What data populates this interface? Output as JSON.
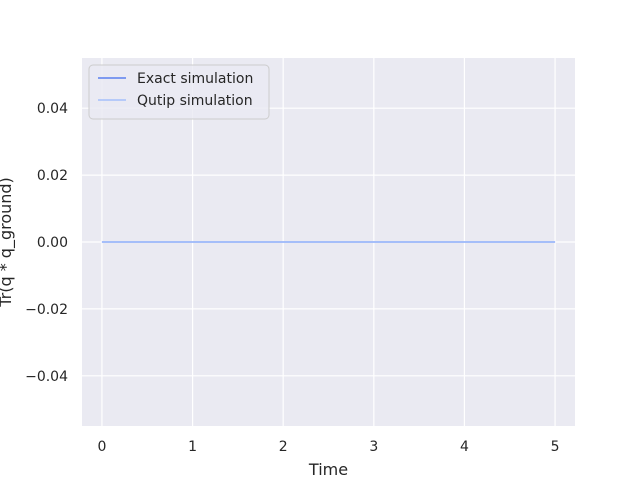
{
  "chart_data": {
    "type": "line",
    "title": "",
    "xlabel": "Time",
    "ylabel": "Tr(q * q_ground)",
    "xlim": [
      -0.22,
      5.22
    ],
    "ylim": [
      -0.055,
      0.055
    ],
    "xticks": [
      0,
      1,
      2,
      3,
      4,
      5
    ],
    "xtick_labels": [
      "0",
      "1",
      "2",
      "3",
      "4",
      "5"
    ],
    "yticks": [
      -0.04,
      -0.02,
      0.0,
      0.02,
      0.04
    ],
    "ytick_labels": [
      "−0.04",
      "−0.02",
      "0.00",
      "0.02",
      "0.04"
    ],
    "grid": true,
    "legend_position": "top-left",
    "series": [
      {
        "name": "Exact simulation",
        "color": "#5b7ff0",
        "x": [
          0,
          1,
          2,
          3,
          4,
          5
        ],
        "y": [
          0,
          0,
          0,
          0,
          0,
          0
        ]
      },
      {
        "name": "Qutip simulation",
        "color": "#a5c0fb",
        "x": [
          0,
          1,
          2,
          3,
          4,
          5
        ],
        "y": [
          0,
          0,
          0,
          0,
          0,
          0
        ]
      }
    ],
    "colors": {
      "background": "#eaeaf2",
      "grid": "#ffffff",
      "text": "#262626"
    }
  }
}
